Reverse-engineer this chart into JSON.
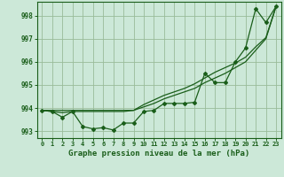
{
  "title": "Graphe pression niveau de la mer (hPa)",
  "background_color": "#cce8d8",
  "plot_bg_color": "#cce8d8",
  "line_color": "#1a5e1a",
  "grid_color": "#99bb99",
  "xlim": [
    -0.5,
    23.5
  ],
  "ylim": [
    992.7,
    998.6
  ],
  "yticks": [
    993,
    994,
    995,
    996,
    997,
    998
  ],
  "xticks": [
    0,
    1,
    2,
    3,
    4,
    5,
    6,
    7,
    8,
    9,
    10,
    11,
    12,
    13,
    14,
    15,
    16,
    17,
    18,
    19,
    20,
    21,
    22,
    23
  ],
  "series1_x": [
    0,
    1,
    2,
    3,
    4,
    5,
    6,
    7,
    8,
    9,
    10,
    11,
    12,
    13,
    14,
    15,
    16,
    17,
    18,
    19,
    20,
    21,
    22,
    23
  ],
  "series1_y": [
    993.9,
    993.85,
    993.6,
    993.85,
    993.2,
    993.1,
    993.15,
    993.05,
    993.35,
    993.35,
    993.85,
    993.9,
    994.2,
    994.2,
    994.2,
    994.25,
    995.5,
    995.1,
    995.1,
    996.0,
    996.6,
    998.3,
    997.7,
    998.4
  ],
  "series2_x": [
    0,
    1,
    2,
    3,
    4,
    5,
    6,
    7,
    8,
    9,
    10,
    11,
    12,
    13,
    14,
    15,
    16,
    17,
    18,
    19,
    20,
    21,
    22,
    23
  ],
  "series2_y": [
    993.9,
    993.85,
    993.8,
    993.85,
    993.85,
    993.85,
    993.85,
    993.85,
    993.85,
    993.9,
    994.05,
    994.2,
    994.4,
    994.55,
    994.7,
    994.85,
    995.1,
    995.3,
    995.5,
    995.75,
    996.0,
    996.5,
    997.0,
    998.4
  ],
  "series3_x": [
    0,
    1,
    2,
    3,
    4,
    5,
    6,
    7,
    8,
    9,
    10,
    11,
    12,
    13,
    14,
    15,
    16,
    17,
    18,
    19,
    20,
    21,
    22,
    23
  ],
  "series3_y": [
    993.9,
    993.9,
    993.9,
    993.9,
    993.9,
    993.9,
    993.9,
    993.9,
    993.9,
    993.9,
    994.15,
    994.35,
    994.55,
    994.7,
    994.85,
    995.05,
    995.3,
    995.55,
    995.75,
    995.95,
    996.2,
    996.65,
    997.05,
    998.4
  ],
  "tick_fontsize": 5,
  "label_fontsize": 6.5
}
